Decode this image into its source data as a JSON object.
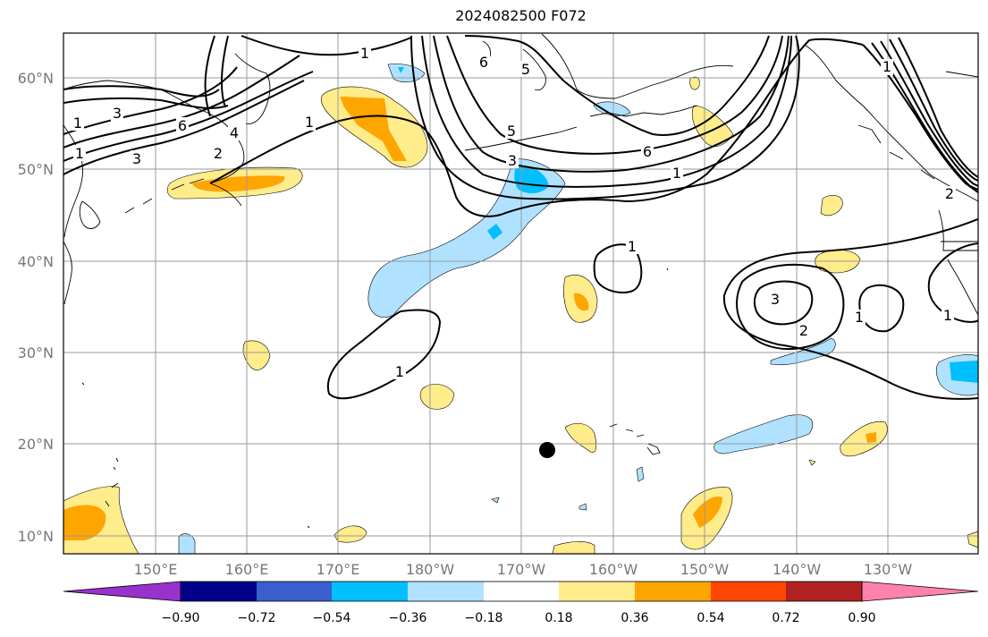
{
  "title": "2024082500 F072",
  "map": {
    "lat_labels": [
      "60°N",
      "50°N",
      "40°N",
      "30°N",
      "20°N",
      "10°N"
    ],
    "lon_labels": [
      "150°E",
      "160°E",
      "170°E",
      "180°W",
      "170°W",
      "160°W",
      "150°W",
      "140°W",
      "130°W"
    ],
    "contour_labels": [
      "6",
      "5",
      "1",
      "1",
      "5",
      "6",
      "3",
      "1",
      "4",
      "2",
      "3",
      "3",
      "1",
      "1",
      "6",
      "2",
      "1",
      "1",
      "3",
      "2",
      "1",
      "1",
      "1"
    ],
    "marker": {
      "name": "storm-center",
      "lat": 19.3,
      "lon": -167.3
    }
  },
  "colorbar": {
    "ticks": [
      "−0.90",
      "−0.72",
      "−0.54",
      "−0.36",
      "−0.18",
      "0.18",
      "0.36",
      "0.54",
      "0.72",
      "0.90"
    ],
    "colors": [
      "#9932cc",
      "#00008b",
      "#3a5fcd",
      "#00bfff",
      "#b0e2ff",
      "#ffffff",
      "#ffec8b",
      "#ffa500",
      "#ff4500",
      "#b22222",
      "#ff82ab"
    ]
  }
}
